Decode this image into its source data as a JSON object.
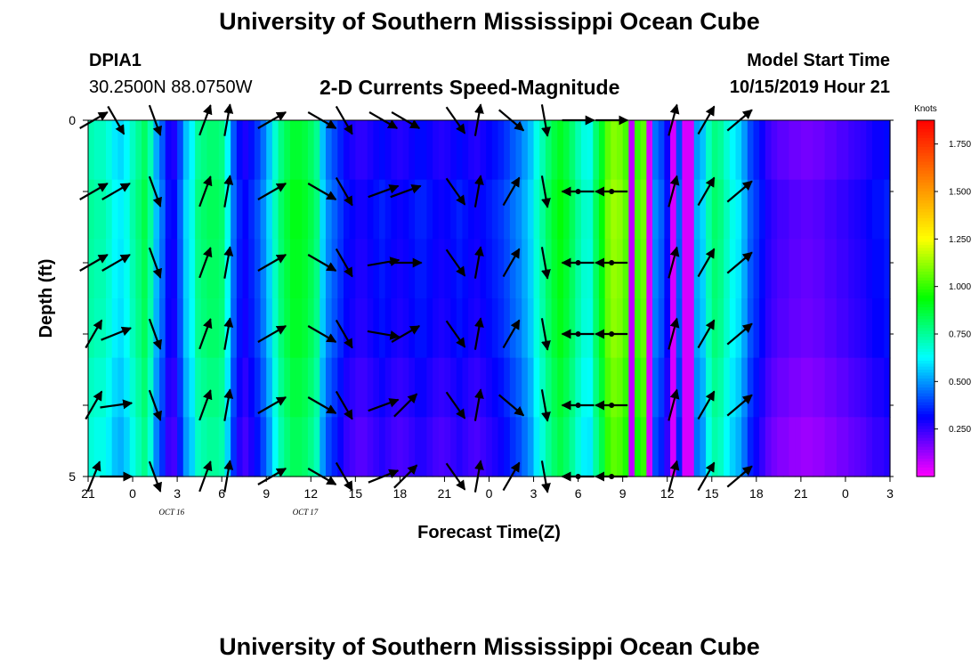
{
  "header": {
    "title": "University of Southern Mississippi Ocean Cube",
    "station": "DPIA1",
    "coords": "30.2500N 88.0750W",
    "subtitle": "2-D Currents Speed-Magnitude",
    "model_label": "Model Start Time",
    "model_time": "10/15/2019 Hour 21"
  },
  "footer": {
    "title": "University of Southern Mississippi Ocean Cube"
  },
  "chart_data": {
    "type": "heatmap",
    "title": "2-D Currents Speed-Magnitude",
    "xlabel": "Forecast Time(Z)",
    "ylabel": "Depth (ft)",
    "x_tick_labels": [
      "21",
      "0",
      "3",
      "6",
      "9",
      "12",
      "15",
      "18",
      "21",
      "0",
      "3",
      "6",
      "9",
      "12",
      "15",
      "18",
      "21",
      "0",
      "3"
    ],
    "date_labels": [
      {
        "label": "OCT 16",
        "at_hour": 15
      },
      {
        "label": "OCT 17",
        "at_hour": 39
      }
    ],
    "y_tick_labels": [
      "0",
      "5"
    ],
    "ylim": [
      0,
      5
    ],
    "colorbar": {
      "title": "Knots",
      "ticks": [
        "1.750",
        "1.500",
        "1.250",
        "1.000",
        "0.750",
        "0.500",
        "0.250"
      ],
      "tick_values": [
        1.75,
        1.5,
        1.25,
        1.0,
        0.75,
        0.5,
        0.25
      ],
      "range": [
        0,
        1.875
      ],
      "colors": [
        "#ff00ff",
        "#0000ff",
        "#00ffff",
        "#00ff00",
        "#ffff00",
        "#ff8000",
        "#ff0000"
      ]
    },
    "speed_by_hour": [
      0.72,
      0.7,
      0.7,
      0.66,
      0.6,
      0.58,
      0.62,
      0.7,
      0.76,
      0.82,
      0.72,
      0.52,
      0.42,
      0.3,
      0.28,
      0.4,
      0.55,
      0.62,
      0.75,
      0.78,
      0.8,
      0.8,
      0.78,
      0.62,
      0.42,
      0.32,
      0.28,
      0.33,
      0.38,
      0.45,
      0.55,
      0.68,
      0.78,
      0.84,
      0.88,
      0.88,
      0.86,
      0.82,
      0.76,
      0.55,
      0.45,
      0.4,
      0.35,
      0.3,
      0.28,
      0.26,
      0.26,
      0.28,
      0.3,
      0.32,
      0.3,
      0.28,
      0.27,
      0.28,
      0.3,
      0.32,
      0.32,
      0.3,
      0.28,
      0.27,
      0.28,
      0.3,
      0.32,
      0.3,
      0.28,
      0.27,
      0.29,
      0.31,
      0.33,
      0.35,
      0.38,
      0.42,
      0.45,
      0.5,
      0.55,
      0.65,
      0.72,
      0.8,
      0.86,
      0.9,
      0.86,
      0.8,
      0.72,
      0.66,
      0.65,
      0.8,
      0.9,
      1.05,
      1.1,
      1.08,
      1.02,
      0.08,
      1.0,
      1.05,
      0.05,
      0.45,
      0.4,
      0.3,
      0.05,
      0.4,
      0.05,
      0.05,
      0.5,
      0.55,
      0.7,
      0.78,
      0.75,
      0.68,
      0.62,
      0.58,
      0.5,
      0.4,
      0.35,
      0.3,
      0.25,
      0.22,
      0.2,
      0.2,
      0.18,
      0.18,
      0.17,
      0.17,
      0.18,
      0.18,
      0.2,
      0.2,
      0.22,
      0.22,
      0.24,
      0.25,
      0.26,
      0.28,
      0.3,
      0.3,
      0.32
    ],
    "layer_speed_offsets": [
      0.0,
      0.03,
      0.02,
      0.01,
      -0.02,
      -0.05
    ],
    "arrows": [
      {
        "hour": 1,
        "angles": [
          30,
          30,
          30,
          60,
          60,
          68
        ]
      },
      {
        "hour": 5,
        "angles": [
          -60,
          30,
          30,
          22,
          8,
          0
        ]
      },
      {
        "hour": 12,
        "angles": [
          -70,
          -70,
          -70,
          -70,
          -70,
          -70
        ]
      },
      {
        "hour": 21,
        "angles": [
          70,
          70,
          70,
          70,
          70,
          70
        ]
      },
      {
        "hour": 25,
        "angles": [
          80,
          80,
          80,
          80,
          80,
          80
        ]
      },
      {
        "hour": 33,
        "angles": [
          30,
          30,
          30,
          30,
          30,
          30
        ]
      },
      {
        "hour": 42,
        "angles": [
          -30,
          -30,
          -30,
          -30,
          -30,
          -30
        ]
      },
      {
        "hour": 46,
        "angles": [
          -60,
          -60,
          -60,
          -60,
          -60,
          -60
        ]
      },
      {
        "hour": 53,
        "angles": [
          -30,
          20,
          10,
          -10,
          20,
          22
        ]
      },
      {
        "hour": 57,
        "angles": [
          -30,
          20,
          0,
          30,
          45,
          45
        ]
      },
      {
        "hour": 66,
        "angles": [
          -55,
          -55,
          -55,
          -55,
          -55,
          -55
        ]
      },
      {
        "hour": 70,
        "angles": [
          80,
          80,
          80,
          80,
          80,
          80
        ]
      },
      {
        "hour": 76,
        "angles": [
          -40,
          60,
          60,
          60,
          -40,
          60
        ]
      },
      {
        "hour": 82,
        "angles": [
          -80,
          -80,
          -80,
          -80,
          -80,
          -80
        ]
      },
      {
        "hour": 88,
        "angles": [
          0,
          180,
          180,
          180,
          180,
          180
        ]
      },
      {
        "hour": 94,
        "angles": [
          0,
          180,
          180,
          180,
          180,
          180
        ]
      },
      {
        "hour": 105,
        "angles": [
          75,
          75,
          75,
          75,
          75,
          75
        ]
      },
      {
        "hour": 111,
        "angles": [
          60,
          60,
          60,
          60,
          60,
          60
        ]
      },
      {
        "hour": 117,
        "angles": [
          40,
          40,
          40,
          40,
          40,
          40
        ]
      }
    ]
  }
}
